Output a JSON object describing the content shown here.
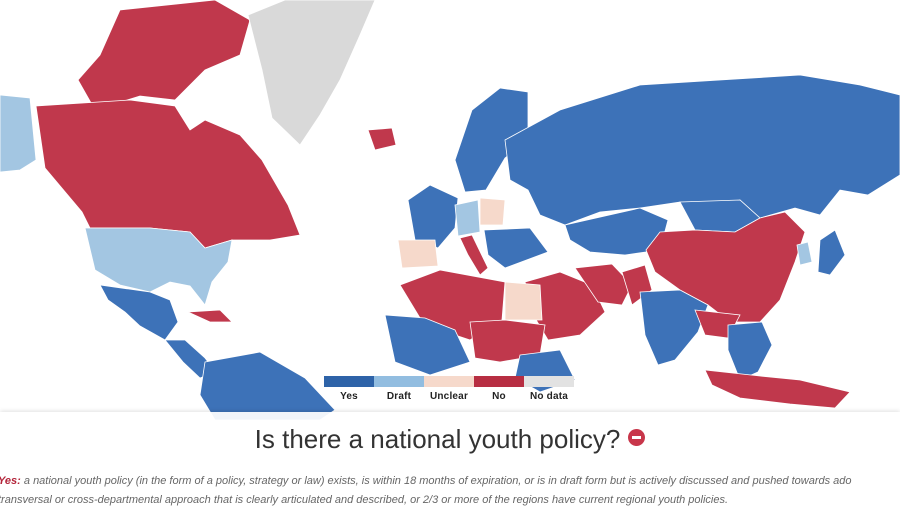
{
  "map": {
    "colors": {
      "yes": "#3d72b8",
      "draft": "#a3c6e2",
      "unclear": "#f6d9cb",
      "no": "#c0384c",
      "nodata": "#d9d9d9",
      "ocean": "#ffffff"
    },
    "country_status": {
      "alaska": "draft",
      "canada": "no",
      "arctic_islands": "no",
      "greenland": "nodata",
      "usa": "draft",
      "mexico": "yes",
      "central_america": "yes",
      "cuba": "no",
      "south_america": "yes",
      "iceland": "no",
      "scandinavia": "yes",
      "western_europe": "yes",
      "central_europe": "draft",
      "poland": "unclear",
      "italy": "no",
      "spain": "unclear",
      "balkans": "yes",
      "russia": "yes",
      "kazakhstan": "yes",
      "mongolia": "yes",
      "china": "no",
      "korea": "draft",
      "japan": "yes",
      "middle_east": "no",
      "iran": "no",
      "pakistan": "no",
      "india": "yes",
      "southeast_asia": "no",
      "indochina": "yes",
      "indonesia": "no",
      "north_africa": "no",
      "egypt": "unclear",
      "west_africa": "yes",
      "sahel": "no",
      "east_africa": "yes"
    }
  },
  "legend": [
    {
      "label": "Yes",
      "color": "#2e63a8"
    },
    {
      "label": "Draft",
      "color": "#92bde0"
    },
    {
      "label": "Unclear",
      "color": "#f6d9cb"
    },
    {
      "label": "No",
      "color": "#b72e42"
    },
    {
      "label": "No data",
      "color": "#e2e2e2"
    }
  ],
  "title": "Is there a national youth policy?",
  "description": {
    "term": "Yes:",
    "line1": "a national youth policy (in the form of a policy, strategy or law) exists, is within 18 months of expiration, or is in draft form but is actively discussed and pushed towards ado",
    "line2": "transversal or cross-departmental approach that is clearly articulated and described, or 2/3 or more of the regions have current regional youth policies."
  }
}
